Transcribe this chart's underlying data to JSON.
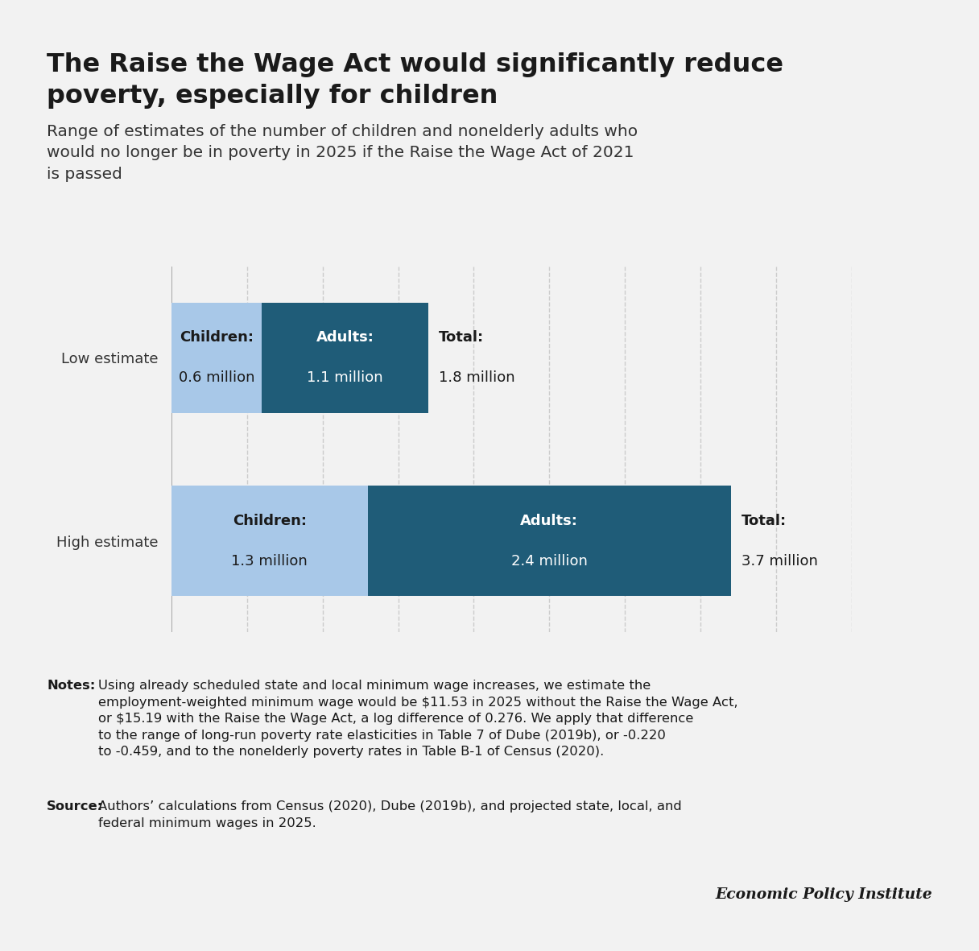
{
  "title_line1": "The Raise the Wage Act would significantly reduce",
  "title_line2": "poverty, especially for children",
  "subtitle": "Range of estimates of the number of children and nonelderly adults who would no longer be in poverty in 2025 if the Raise the Wage Act of 2021 is passed",
  "bars": [
    {
      "label": "Low estimate",
      "children_value": 0.6,
      "adults_value": 1.1,
      "total_value": 1.8,
      "children_label": "Children:",
      "children_sublabel": "0.6 million",
      "adults_label": "Adults:",
      "adults_sublabel": "1.1 million",
      "total_label": "Total:",
      "total_sublabel": "1.8 million"
    },
    {
      "label": "High estimate",
      "children_value": 1.3,
      "adults_value": 2.4,
      "total_value": 3.7,
      "children_label": "Children:",
      "children_sublabel": "1.3 million",
      "adults_label": "Adults:",
      "adults_sublabel": "2.4 million",
      "total_label": "Total:",
      "total_sublabel": "3.7 million"
    }
  ],
  "color_children": "#a8c8e8",
  "color_adults": "#1f5c78",
  "xlim_max": 4.5,
  "gridline_values": [
    0.5,
    1.0,
    1.5,
    2.0,
    2.5,
    3.0,
    3.5,
    4.0,
    4.5
  ],
  "notes_bold": "Notes:",
  "notes_rest": " Using already scheduled state and local minimum wage increases, we estimate the employment-weighted minimum wage would be $11.53 in 2025 without the Raise the Wage Act, or $15.19 with the Raise the Wage Act, a log difference of 0.276. We apply that difference to the range of long-run poverty rate elasticities in Table 7 of Dube (2019b), or -0.220 to -0.459, and to the nonelderly poverty rates in Table B-1 of Census (2020).",
  "source_bold": "Source:",
  "source_rest": " Authors’ calculations from Census (2020), Dube (2019b), and projected state, local, and federal minimum wages in 2025.",
  "epi_label": "Economic Policy Institute",
  "background_color": "#f2f2f2",
  "chart_background": "#f2f2f2",
  "top_bar_color": "#c8c8c8",
  "bottom_bar_color": "#c8c8c8"
}
